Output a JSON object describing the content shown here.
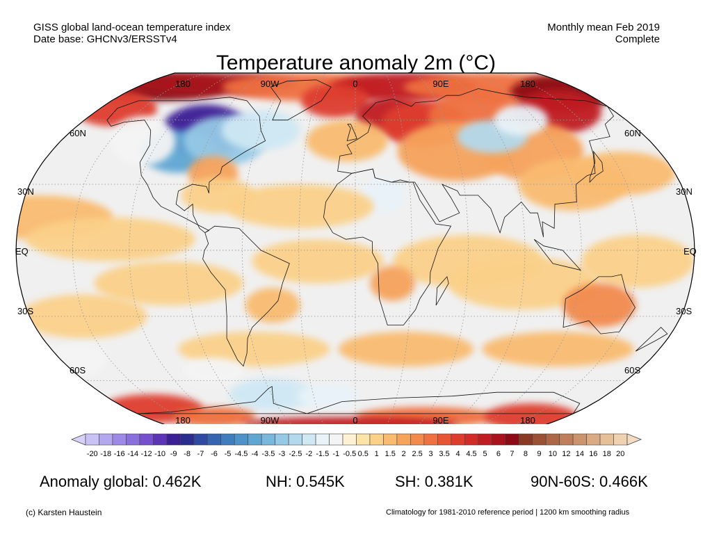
{
  "header": {
    "line1_left": "GISS global land-ocean temperature index",
    "line2_left": "Date base: GHCNv3/ERSSTv4",
    "line1_right": "Monthly mean Feb 2019",
    "line2_right": "Complete"
  },
  "title": "Temperature anomaly 2m (°C)",
  "map": {
    "projection": "Robinson",
    "lon_labels": [
      "180",
      "90W",
      "0",
      "90E",
      "180"
    ],
    "lat_labels_left": [
      "60N",
      "30N",
      "EQ",
      "30S",
      "60S"
    ],
    "lat_labels_right": [
      "60N",
      "30N",
      "EQ",
      "30S",
      "60S"
    ],
    "neutral_color": "#f0f0f0",
    "land_outline_color": "#000000",
    "regions": [
      {
        "name": "north-america-cold",
        "lon": -95,
        "lat": 55,
        "anomaly": -9
      },
      {
        "name": "alaska-warm",
        "lon": -160,
        "lat": 68,
        "anomaly": 7
      },
      {
        "name": "beaufort-arctic-warm",
        "lon": -150,
        "lat": 78,
        "anomaly": 8
      },
      {
        "name": "greenland-warm",
        "lon": -40,
        "lat": 72,
        "anomaly": 5
      },
      {
        "name": "europe-warm",
        "lon": 30,
        "lat": 60,
        "anomaly": 5
      },
      {
        "name": "east-siberia-warm",
        "lon": 150,
        "lat": 68,
        "anomaly": 6
      },
      {
        "name": "central-asia-cold",
        "lon": 85,
        "lat": 50,
        "anomaly": -2
      },
      {
        "name": "antarctica-warm",
        "lon": 0,
        "lat": -82,
        "anomaly": 4
      },
      {
        "name": "weddell-cold",
        "lon": -60,
        "lat": -70,
        "anomaly": -1.5
      },
      {
        "name": "australia-warm",
        "lon": 133,
        "lat": -25,
        "anomaly": 2
      }
    ]
  },
  "colorbar": {
    "labels": [
      "-20",
      "-18",
      "-16",
      "-14",
      "-12",
      "-10",
      "-9",
      "-8",
      "-7",
      "-6",
      "-5",
      "-4.5",
      "-4",
      "-3.5",
      "-3",
      "-2.5",
      "-2",
      "-1.5",
      "-1",
      "-0.5",
      "0.5",
      "1",
      "1.5",
      "2",
      "2.5",
      "3",
      "3.5",
      "4",
      "4.5",
      "5",
      "6",
      "7",
      "8",
      "9",
      "10",
      "12",
      "14",
      "16",
      "18",
      "20"
    ],
    "colors": [
      "#c8c2f5",
      "#b3a8ef",
      "#9d8ae6",
      "#8a6fdc",
      "#7650cc",
      "#5b35b5",
      "#3b1f94",
      "#2b2d8c",
      "#2f4aa0",
      "#3564b0",
      "#3f7dbe",
      "#4d92c9",
      "#5fa6d3",
      "#78b8dc",
      "#95c9e5",
      "#b3d9ed",
      "#cfe8f4",
      "#e8f3f9",
      "#f4f4f4",
      "#fdf3d4",
      "#fce3a8",
      "#fbd089",
      "#f9bb70",
      "#f6a35c",
      "#f38a4d",
      "#ef7040",
      "#e85535",
      "#de3d2d",
      "#d12a27",
      "#c01d23",
      "#a8121d",
      "#8c0a16",
      "#8a3a24",
      "#9b5135",
      "#ac6746",
      "#bd7e59",
      "#cc946c",
      "#da aa82",
      "#e7c09a",
      "#f0d2b2"
    ],
    "overflow_low": "#d8d2fa",
    "overflow_high": "#f4dcc4"
  },
  "stats": {
    "global": "Anomaly global: 0.462K",
    "nh": "NH: 0.545K",
    "sh": "SH: 0.381K",
    "polar": "90N-60S: 0.466K"
  },
  "footer": {
    "copyright": "(c) Karsten Haustein",
    "note": "Climatology for 1981-2010 reference period | 1200 km smoothing radius"
  }
}
